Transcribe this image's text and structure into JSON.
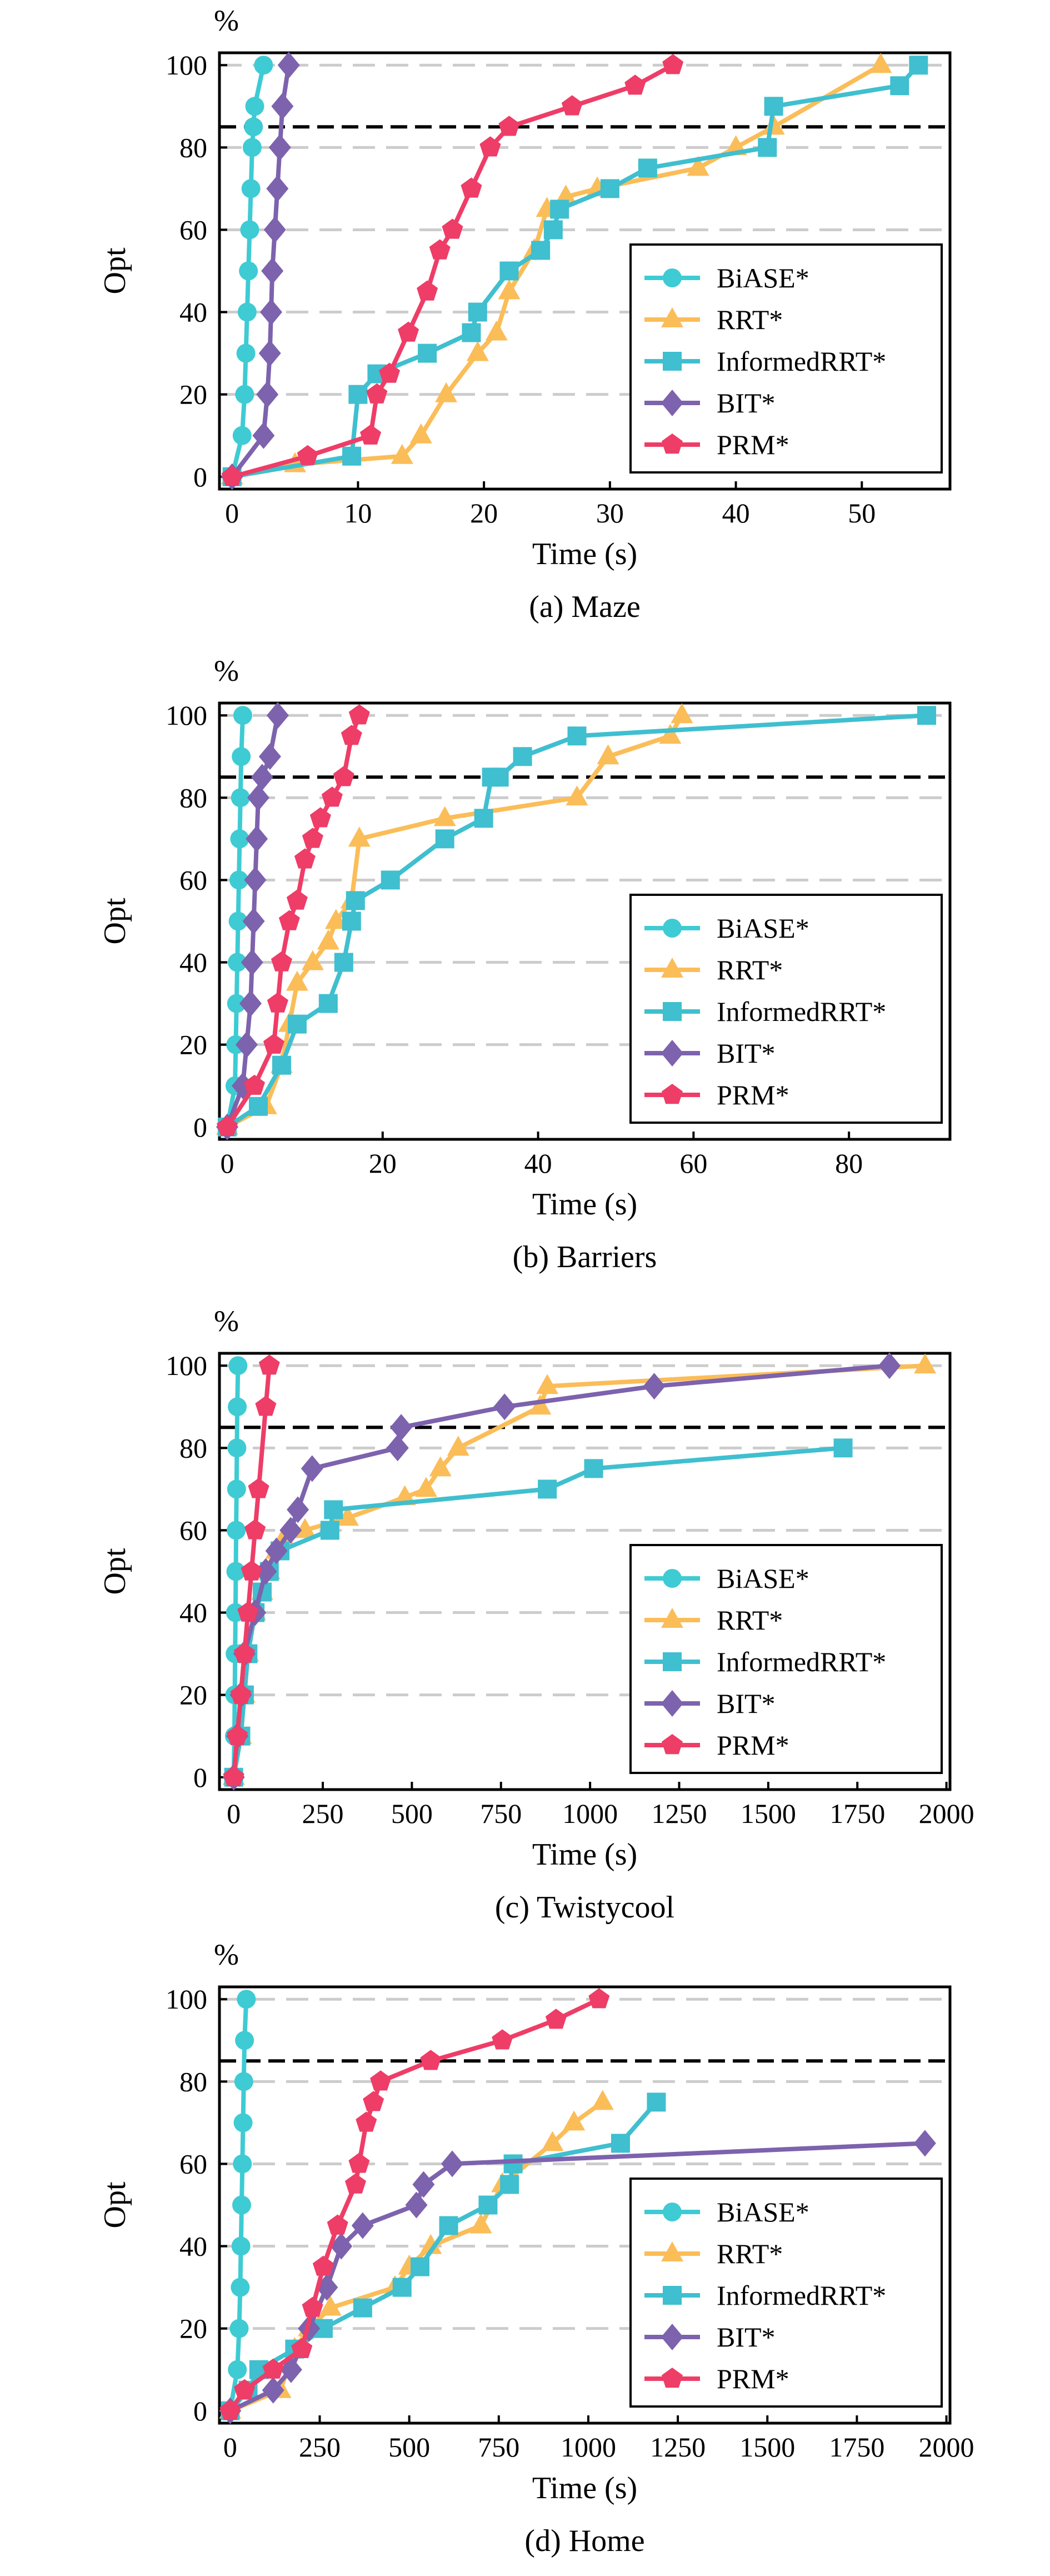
{
  "legend_entries": [
    "BiASE*",
    "RRT*",
    "InformedRRT*",
    "BIT*",
    "PRM*"
  ],
  "colors": {
    "BiASE*": "#3ecbd3",
    "RRT*": "#fbbd58",
    "InformedRRT*": "#3fbfcf",
    "BIT*": "#7d62ad",
    "PRM*": "#ee3d67"
  },
  "markers": {
    "BiASE*": "circle",
    "RRT*": "triangle",
    "InformedRRT*": "square",
    "BIT*": "diamond",
    "PRM*": "pentagon"
  },
  "chart_data": [
    {
      "type": "line",
      "caption": "(a) Maze",
      "xlabel": "Time (s)",
      "ylabel": "Opt",
      "yunit": "%",
      "xlim": [
        -1,
        57
      ],
      "ylim": [
        0,
        100
      ],
      "xticks": [
        0,
        10,
        20,
        30,
        40,
        50
      ],
      "yticks": [
        0,
        20,
        40,
        60,
        80,
        100
      ],
      "threshold": 85,
      "grid": "horizontal dashed",
      "legend_position": "lower-right",
      "series": [
        {
          "name": "BiASE*",
          "x": [
            0,
            0.8,
            1,
            1.1,
            1.2,
            1.3,
            1.4,
            1.5,
            1.6,
            1.7,
            1.8,
            2.5
          ],
          "y": [
            0,
            10,
            20,
            30,
            40,
            50,
            60,
            70,
            80,
            85,
            90,
            100
          ]
        },
        {
          "name": "RRT*",
          "x": [
            0,
            5,
            13.5,
            15,
            17,
            19.5,
            21,
            22,
            24,
            25,
            26.5,
            29,
            37,
            40,
            43,
            51.5
          ],
          "y": [
            0,
            3,
            5,
            10,
            20,
            30,
            35,
            45,
            55,
            65,
            68,
            70,
            75,
            80,
            85,
            100
          ]
        },
        {
          "name": "InformedRRT*",
          "x": [
            0,
            9.5,
            10,
            11.5,
            15.5,
            19,
            19.5,
            22,
            24.5,
            25.5,
            26,
            30,
            33,
            42.5,
            43,
            53,
            54.5
          ],
          "y": [
            0,
            5,
            20,
            25,
            30,
            35,
            40,
            50,
            55,
            60,
            65,
            70,
            75,
            80,
            90,
            95,
            100
          ]
        },
        {
          "name": "BIT*",
          "x": [
            0,
            2.5,
            2.8,
            3,
            3.1,
            3.2,
            3.4,
            3.6,
            3.8,
            4,
            4.5
          ],
          "y": [
            0,
            10,
            20,
            30,
            40,
            50,
            60,
            70,
            80,
            90,
            100
          ]
        },
        {
          "name": "PRM*",
          "x": [
            0,
            6,
            11,
            11.5,
            12.5,
            14,
            15.5,
            16.5,
            17.5,
            19,
            20.5,
            22,
            27,
            32,
            35
          ],
          "y": [
            0,
            5,
            10,
            20,
            25,
            35,
            45,
            55,
            60,
            70,
            80,
            85,
            90,
            95,
            100
          ]
        }
      ]
    },
    {
      "type": "line",
      "caption": "(b) Barriers",
      "xlabel": "Time (s)",
      "ylabel": "Opt",
      "yunit": "%",
      "xlim": [
        -1,
        93
      ],
      "ylim": [
        0,
        100
      ],
      "xticks": [
        0,
        20,
        40,
        60,
        80
      ],
      "yticks": [
        0,
        20,
        40,
        60,
        80,
        100
      ],
      "threshold": 85,
      "grid": "horizontal dashed",
      "legend_position": "lower-right",
      "series": [
        {
          "name": "BiASE*",
          "x": [
            0,
            1,
            1.1,
            1.2,
            1.3,
            1.4,
            1.5,
            1.6,
            1.7,
            1.8,
            2
          ],
          "y": [
            0,
            10,
            20,
            30,
            40,
            50,
            60,
            70,
            80,
            90,
            100
          ]
        },
        {
          "name": "RRT*",
          "x": [
            0,
            5,
            7,
            8,
            9,
            11,
            13,
            14,
            16,
            17,
            28,
            45,
            49,
            57,
            58.5
          ],
          "y": [
            0,
            5,
            15,
            25,
            35,
            40,
            45,
            50,
            55,
            70,
            75,
            80,
            90,
            95,
            100
          ]
        },
        {
          "name": "InformedRRT*",
          "x": [
            0,
            4,
            7,
            9,
            13,
            15,
            16,
            16.5,
            21,
            28,
            33,
            34,
            35,
            38,
            45,
            90
          ],
          "y": [
            0,
            5,
            15,
            25,
            30,
            40,
            50,
            55,
            60,
            70,
            75,
            85,
            85,
            90,
            95,
            100
          ]
        },
        {
          "name": "BIT*",
          "x": [
            0,
            2,
            2.5,
            3,
            3.2,
            3.4,
            3.6,
            3.8,
            4,
            4.5,
            5.5,
            6.5
          ],
          "y": [
            0,
            10,
            20,
            30,
            40,
            50,
            60,
            70,
            80,
            85,
            90,
            100
          ]
        },
        {
          "name": "PRM*",
          "x": [
            0,
            3.5,
            6,
            6.5,
            7,
            8,
            9,
            10,
            11,
            12,
            13.5,
            15,
            16,
            17
          ],
          "y": [
            0,
            10,
            20,
            30,
            40,
            50,
            55,
            65,
            70,
            75,
            80,
            85,
            95,
            100
          ]
        }
      ]
    },
    {
      "type": "line",
      "caption": "(c) Twistycool",
      "xlabel": "Time (s)",
      "ylabel": "Opt",
      "yunit": "%",
      "xlim": [
        -40,
        2010
      ],
      "ylim": [
        0,
        100
      ],
      "xticks": [
        0,
        250,
        500,
        750,
        1000,
        1250,
        1500,
        1750,
        2000
      ],
      "yticks": [
        0,
        20,
        40,
        60,
        80,
        100
      ],
      "threshold": 85,
      "grid": "horizontal dashed",
      "legend_position": "lower-right",
      "series": [
        {
          "name": "BiASE*",
          "x": [
            0,
            2,
            3,
            4,
            5,
            6,
            7,
            8,
            9,
            10,
            12
          ],
          "y": [
            0,
            10,
            20,
            30,
            40,
            50,
            60,
            70,
            80,
            90,
            100
          ]
        },
        {
          "name": "RRT*",
          "x": [
            0,
            20,
            30,
            40,
            60,
            80,
            100,
            120,
            140,
            200,
            320,
            480,
            540,
            580,
            630,
            860,
            880,
            1940
          ],
          "y": [
            0,
            10,
            20,
            30,
            40,
            45,
            50,
            55,
            58,
            60,
            63,
            68,
            70,
            75,
            80,
            90,
            95,
            100
          ]
        },
        {
          "name": "InformedRRT*",
          "x": [
            0,
            20,
            30,
            40,
            60,
            80,
            100,
            130,
            270,
            280,
            880,
            1010,
            1710
          ],
          "y": [
            0,
            10,
            20,
            30,
            40,
            45,
            50,
            55,
            60,
            65,
            70,
            75,
            80
          ]
        },
        {
          "name": "BIT*",
          "x": [
            0,
            10,
            20,
            30,
            60,
            90,
            120,
            160,
            180,
            220,
            460,
            470,
            760,
            1180,
            1840
          ],
          "y": [
            0,
            10,
            20,
            30,
            40,
            50,
            55,
            60,
            65,
            75,
            80,
            85,
            90,
            95,
            100
          ]
        },
        {
          "name": "PRM*",
          "x": [
            0,
            10,
            20,
            30,
            40,
            50,
            60,
            70,
            90,
            100
          ],
          "y": [
            0,
            10,
            20,
            30,
            40,
            50,
            60,
            70,
            90,
            100
          ]
        }
      ]
    },
    {
      "type": "line",
      "caption": "(d) Home",
      "xlabel": "Time (s)",
      "ylabel": "Opt",
      "yunit": "%",
      "xlim": [
        -30,
        2010
      ],
      "ylim": [
        0,
        100
      ],
      "xticks": [
        0,
        250,
        500,
        750,
        1000,
        1250,
        1500,
        1750,
        2000
      ],
      "yticks": [
        0,
        20,
        40,
        60,
        80,
        100
      ],
      "threshold": 85,
      "grid": "horizontal dashed",
      "legend_position": "lower-right",
      "series": [
        {
          "name": "BiASE*",
          "x": [
            0,
            20,
            25,
            28,
            30,
            32,
            34,
            36,
            38,
            40,
            45
          ],
          "y": [
            0,
            10,
            20,
            30,
            40,
            50,
            60,
            70,
            80,
            90,
            100
          ]
        },
        {
          "name": "RRT*",
          "x": [
            0,
            140,
            180,
            220,
            280,
            460,
            500,
            560,
            700,
            760,
            900,
            960,
            1040
          ],
          "y": [
            0,
            5,
            15,
            20,
            25,
            30,
            35,
            40,
            45,
            55,
            65,
            70,
            75
          ]
        },
        {
          "name": "InformedRRT*",
          "x": [
            0,
            50,
            80,
            180,
            260,
            370,
            480,
            530,
            610,
            720,
            780,
            790,
            1090,
            1190
          ],
          "y": [
            0,
            5,
            10,
            15,
            20,
            25,
            30,
            35,
            45,
            50,
            55,
            60,
            65,
            75
          ]
        },
        {
          "name": "BIT*",
          "x": [
            0,
            120,
            170,
            220,
            270,
            310,
            370,
            520,
            540,
            620,
            1940
          ],
          "y": [
            0,
            5,
            10,
            20,
            30,
            40,
            45,
            50,
            55,
            60,
            65
          ]
        },
        {
          "name": "PRM*",
          "x": [
            0,
            40,
            120,
            200,
            230,
            260,
            300,
            350,
            360,
            380,
            400,
            420,
            560,
            760,
            910,
            1030
          ],
          "y": [
            0,
            5,
            10,
            15,
            25,
            35,
            45,
            55,
            60,
            70,
            75,
            80,
            85,
            90,
            95,
            100
          ]
        }
      ]
    }
  ]
}
